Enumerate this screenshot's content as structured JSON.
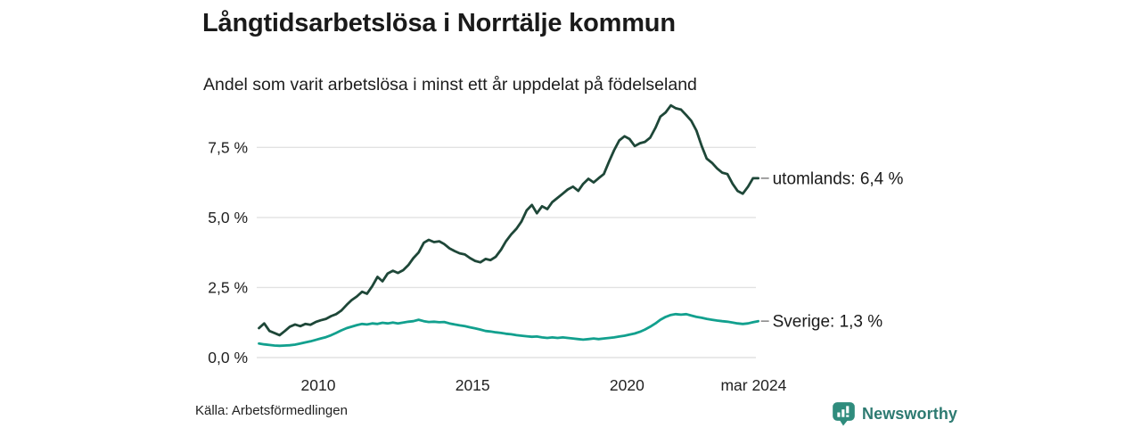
{
  "header": {
    "title": "Långtidsarbetslösa i Norrtälje kommun",
    "subtitle": "Andel som varit arbetslösa i minst ett år uppdelat på födelseland"
  },
  "chart_data": {
    "type": "line",
    "title": "Långtidsarbetslösa i Norrtälje kommun",
    "subtitle": "Andel som varit arbetslösa i minst ett år uppdelat på födelseland",
    "unit": "%",
    "grid": true,
    "ylim": [
      0,
      9.4
    ],
    "xlim": [
      2007.95,
      2024.35
    ],
    "x": [
      2008.08,
      2008.25,
      2008.42,
      2008.58,
      2008.75,
      2008.92,
      2009.08,
      2009.25,
      2009.42,
      2009.58,
      2009.75,
      2009.92,
      2010.08,
      2010.25,
      2010.42,
      2010.58,
      2010.75,
      2010.92,
      2011.08,
      2011.25,
      2011.42,
      2011.58,
      2011.75,
      2011.92,
      2012.08,
      2012.25,
      2012.42,
      2012.58,
      2012.75,
      2012.92,
      2013.08,
      2013.25,
      2013.42,
      2013.58,
      2013.75,
      2013.92,
      2014.08,
      2014.25,
      2014.42,
      2014.58,
      2014.75,
      2014.92,
      2015.08,
      2015.25,
      2015.42,
      2015.58,
      2015.75,
      2015.92,
      2016.08,
      2016.25,
      2016.42,
      2016.58,
      2016.75,
      2016.92,
      2017.08,
      2017.25,
      2017.42,
      2017.58,
      2017.75,
      2017.92,
      2018.08,
      2018.25,
      2018.42,
      2018.58,
      2018.75,
      2018.92,
      2019.08,
      2019.25,
      2019.42,
      2019.58,
      2019.75,
      2019.92,
      2020.08,
      2020.25,
      2020.42,
      2020.58,
      2020.75,
      2020.92,
      2021.08,
      2021.25,
      2021.42,
      2021.58,
      2021.75,
      2021.92,
      2022.08,
      2022.25,
      2022.42,
      2022.58,
      2022.75,
      2022.92,
      2023.08,
      2023.25,
      2023.42,
      2023.58,
      2023.75,
      2023.92,
      2024.08,
      2024.25
    ],
    "series": [
      {
        "name": "utomlands",
        "color": "#1e4738",
        "end_label": "utomlands: 6,4 %",
        "end_value": 6.4,
        "values": [
          1.05,
          1.22,
          0.95,
          0.88,
          0.8,
          0.95,
          1.1,
          1.18,
          1.12,
          1.2,
          1.17,
          1.27,
          1.33,
          1.38,
          1.48,
          1.55,
          1.68,
          1.88,
          2.05,
          2.18,
          2.35,
          2.28,
          2.55,
          2.88,
          2.72,
          3.0,
          3.1,
          3.02,
          3.12,
          3.3,
          3.55,
          3.75,
          4.1,
          4.2,
          4.12,
          4.15,
          4.05,
          3.9,
          3.8,
          3.72,
          3.68,
          3.55,
          3.45,
          3.4,
          3.52,
          3.48,
          3.6,
          3.85,
          4.15,
          4.4,
          4.6,
          4.85,
          5.25,
          5.45,
          5.15,
          5.4,
          5.3,
          5.55,
          5.7,
          5.85,
          6.0,
          6.1,
          5.95,
          6.2,
          6.38,
          6.25,
          6.4,
          6.55,
          7.0,
          7.4,
          7.75,
          7.9,
          7.8,
          7.55,
          7.65,
          7.7,
          7.85,
          8.2,
          8.6,
          8.75,
          9.0,
          8.9,
          8.85,
          8.65,
          8.45,
          8.1,
          7.55,
          7.1,
          6.95,
          6.75,
          6.6,
          6.55,
          6.2,
          5.95,
          5.85,
          6.1,
          6.4,
          6.4
        ]
      },
      {
        "name": "Sverige",
        "color": "#12a08e",
        "end_label": "Sverige: 1,3 %",
        "end_value": 1.3,
        "values": [
          0.5,
          0.47,
          0.45,
          0.43,
          0.42,
          0.43,
          0.44,
          0.46,
          0.5,
          0.54,
          0.58,
          0.63,
          0.68,
          0.73,
          0.8,
          0.88,
          0.97,
          1.05,
          1.1,
          1.16,
          1.2,
          1.18,
          1.22,
          1.2,
          1.24,
          1.22,
          1.25,
          1.22,
          1.25,
          1.28,
          1.3,
          1.35,
          1.3,
          1.27,
          1.28,
          1.26,
          1.27,
          1.22,
          1.18,
          1.15,
          1.12,
          1.08,
          1.04,
          1.0,
          0.95,
          0.93,
          0.9,
          0.88,
          0.85,
          0.83,
          0.8,
          0.78,
          0.76,
          0.74,
          0.75,
          0.72,
          0.7,
          0.72,
          0.7,
          0.72,
          0.7,
          0.68,
          0.66,
          0.64,
          0.66,
          0.68,
          0.66,
          0.68,
          0.7,
          0.72,
          0.75,
          0.78,
          0.82,
          0.86,
          0.92,
          1.0,
          1.1,
          1.22,
          1.35,
          1.45,
          1.52,
          1.55,
          1.53,
          1.55,
          1.5,
          1.45,
          1.42,
          1.38,
          1.35,
          1.32,
          1.3,
          1.28,
          1.25,
          1.22,
          1.2,
          1.22,
          1.26,
          1.3
        ]
      }
    ],
    "yticks": [
      {
        "label": "0,0 %",
        "value": 0
      },
      {
        "label": "2,5 %",
        "value": 2.5
      },
      {
        "label": "5,0 %",
        "value": 5
      },
      {
        "label": "7,5 %",
        "value": 7.5
      }
    ],
    "xticks": [
      {
        "label": "2010",
        "t": 2010
      },
      {
        "label": "2015",
        "t": 2015
      },
      {
        "label": "2020",
        "t": 2020
      },
      {
        "label": "mar 2024",
        "t": 2024.1
      }
    ],
    "legend_position": "end-of-line labels"
  },
  "source": {
    "text": "Källa: Arbetsförmedlingen"
  },
  "branding": {
    "name": "Newsworthy",
    "logo_icon": "bar-chart-speech-bubble-icon",
    "logo_color": "#2f8c7d",
    "text_color": "#2d7a71"
  },
  "colors": {
    "gridline": "#e2e2e2",
    "tick_text": "#222222",
    "annotation_text": "#1a1a1a",
    "leader_dash": "#8a8a8a"
  }
}
